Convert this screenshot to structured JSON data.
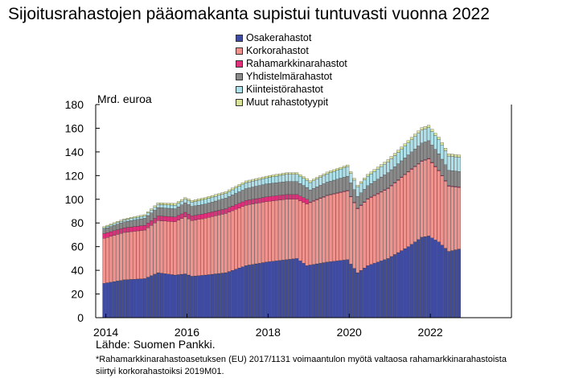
{
  "title": "Sijoitusrahastojen pääomakanta supistui tuntuvasti vuonna 2022",
  "unit_label": "Mrd. euroa",
  "source": "Lähde: Suomen Pankki.",
  "footnote_line1": "*Rahamarkkinarahastoasetuksen (EU) 2017/1131 voimaantulon myötä valtaosa rahamarkkinarahastoista",
  "footnote_line2": "siirtyi korkorahastoiksi 2019M01.",
  "legend": [
    {
      "name": "Osakerahastot",
      "color": "#3f4aa1"
    },
    {
      "name": "Korkorahastot",
      "color": "#f0938f"
    },
    {
      "name": "Rahamarkkinarahastot",
      "color": "#e0307c"
    },
    {
      "name": "Yhdistelmärahastot",
      "color": "#8a8a8a"
    },
    {
      "name": "Kiinteistörahastot",
      "color": "#aee0ea"
    },
    {
      "name": "Muut rahastotyypit",
      "color": "#d9e39a"
    }
  ],
  "chart_data": {
    "type": "bar",
    "stacked": true,
    "ylabel": "Mrd. euroa",
    "ylim": [
      0,
      180
    ],
    "yticks": [
      0,
      20,
      40,
      60,
      80,
      100,
      120,
      140,
      160,
      180
    ],
    "xlim": [
      "2013-10",
      "2024-01"
    ],
    "xticks": [
      "2014",
      "2016",
      "2018",
      "2020",
      "2022"
    ],
    "grid": false,
    "legend_position": "top",
    "x_start": "2013-12",
    "x_end": "2022-09",
    "series": [
      {
        "name": "Osakerahastot",
        "color": "#3f4aa1",
        "anchors": [
          [
            "2013-12",
            29
          ],
          [
            "2014-06",
            32
          ],
          [
            "2014-12",
            33
          ],
          [
            "2015-04",
            38
          ],
          [
            "2015-09",
            36
          ],
          [
            "2015-12",
            37
          ],
          [
            "2016-02",
            35
          ],
          [
            "2016-06",
            36
          ],
          [
            "2016-12",
            38
          ],
          [
            "2017-06",
            44
          ],
          [
            "2017-12",
            47
          ],
          [
            "2018-06",
            49
          ],
          [
            "2018-09",
            50
          ],
          [
            "2018-12",
            44
          ],
          [
            "2019-06",
            47
          ],
          [
            "2019-12",
            49
          ],
          [
            "2020-03",
            38
          ],
          [
            "2020-06",
            44
          ],
          [
            "2020-12",
            50
          ],
          [
            "2021-06",
            60
          ],
          [
            "2021-10",
            68
          ],
          [
            "2021-12",
            69
          ],
          [
            "2022-03",
            64
          ],
          [
            "2022-06",
            56
          ],
          [
            "2022-09",
            58
          ]
        ]
      },
      {
        "name": "Korkorahastot",
        "color": "#f0938f",
        "anchors": [
          [
            "2013-12",
            38
          ],
          [
            "2014-06",
            40
          ],
          [
            "2014-12",
            41
          ],
          [
            "2015-04",
            44
          ],
          [
            "2015-09",
            45
          ],
          [
            "2015-12",
            48
          ],
          [
            "2016-02",
            47
          ],
          [
            "2016-06",
            48
          ],
          [
            "2016-12",
            50
          ],
          [
            "2017-06",
            51
          ],
          [
            "2017-12",
            51
          ],
          [
            "2018-06",
            51
          ],
          [
            "2018-09",
            50
          ],
          [
            "2018-12",
            52
          ],
          [
            "2019-06",
            56
          ],
          [
            "2019-12",
            58
          ],
          [
            "2020-03",
            54
          ],
          [
            "2020-06",
            56
          ],
          [
            "2020-12",
            59
          ],
          [
            "2021-06",
            63
          ],
          [
            "2021-10",
            64
          ],
          [
            "2021-12",
            65
          ],
          [
            "2022-03",
            60
          ],
          [
            "2022-06",
            55
          ],
          [
            "2022-09",
            52
          ]
        ]
      },
      {
        "name": "Rahamarkkinarahastot",
        "color": "#e0307c",
        "anchors": [
          [
            "2013-12",
            4
          ],
          [
            "2014-06",
            4
          ],
          [
            "2014-12",
            4
          ],
          [
            "2015-04",
            4
          ],
          [
            "2015-09",
            4
          ],
          [
            "2015-12",
            4
          ],
          [
            "2016-02",
            4
          ],
          [
            "2016-06",
            4
          ],
          [
            "2016-12",
            4
          ],
          [
            "2017-06",
            4
          ],
          [
            "2017-12",
            4
          ],
          [
            "2018-06",
            4
          ],
          [
            "2018-09",
            4
          ],
          [
            "2018-12",
            4
          ],
          [
            "2019-01",
            0.6
          ],
          [
            "2019-06",
            0.5
          ],
          [
            "2019-12",
            0.5
          ],
          [
            "2020-03",
            0.5
          ],
          [
            "2020-06",
            0.5
          ],
          [
            "2020-12",
            0.5
          ],
          [
            "2021-06",
            0.5
          ],
          [
            "2021-10",
            0.5
          ],
          [
            "2021-12",
            0.5
          ],
          [
            "2022-03",
            0.5
          ],
          [
            "2022-06",
            0.5
          ],
          [
            "2022-09",
            0.5
          ]
        ]
      },
      {
        "name": "Yhdistelmärahastot",
        "color": "#8a8a8a",
        "anchors": [
          [
            "2013-12",
            4
          ],
          [
            "2014-06",
            5
          ],
          [
            "2014-12",
            6
          ],
          [
            "2015-04",
            7
          ],
          [
            "2015-09",
            7
          ],
          [
            "2015-12",
            8
          ],
          [
            "2016-02",
            8
          ],
          [
            "2016-06",
            8
          ],
          [
            "2016-12",
            9
          ],
          [
            "2017-06",
            10
          ],
          [
            "2017-12",
            11
          ],
          [
            "2018-06",
            11
          ],
          [
            "2018-09",
            11
          ],
          [
            "2018-12",
            10
          ],
          [
            "2019-06",
            11
          ],
          [
            "2019-12",
            12
          ],
          [
            "2020-03",
            10
          ],
          [
            "2020-06",
            11
          ],
          [
            "2020-12",
            13
          ],
          [
            "2021-06",
            14
          ],
          [
            "2021-10",
            15
          ],
          [
            "2021-12",
            15
          ],
          [
            "2022-03",
            14
          ],
          [
            "2022-06",
            13
          ],
          [
            "2022-09",
            13
          ]
        ]
      },
      {
        "name": "Kiinteistörahastot",
        "color": "#aee0ea",
        "anchors": [
          [
            "2013-12",
            1
          ],
          [
            "2014-06",
            1.5
          ],
          [
            "2014-12",
            2
          ],
          [
            "2015-04",
            2.5
          ],
          [
            "2015-09",
            3
          ],
          [
            "2015-12",
            3
          ],
          [
            "2016-02",
            3.5
          ],
          [
            "2016-06",
            4
          ],
          [
            "2016-12",
            4
          ],
          [
            "2017-06",
            5
          ],
          [
            "2017-12",
            5
          ],
          [
            "2018-06",
            6
          ],
          [
            "2018-09",
            6
          ],
          [
            "2018-12",
            6
          ],
          [
            "2019-06",
            7
          ],
          [
            "2019-12",
            8
          ],
          [
            "2020-03",
            8
          ],
          [
            "2020-06",
            8
          ],
          [
            "2020-12",
            9
          ],
          [
            "2021-06",
            10
          ],
          [
            "2021-10",
            11
          ],
          [
            "2021-12",
            11
          ],
          [
            "2022-03",
            12
          ],
          [
            "2022-06",
            12
          ],
          [
            "2022-09",
            12
          ]
        ]
      },
      {
        "name": "Muut rahastotyypit",
        "color": "#d9e39a",
        "anchors": [
          [
            "2013-12",
            1
          ],
          [
            "2014-06",
            1
          ],
          [
            "2014-12",
            1
          ],
          [
            "2015-04",
            1.5
          ],
          [
            "2015-09",
            1.5
          ],
          [
            "2015-12",
            1.5
          ],
          [
            "2016-02",
            1.5
          ],
          [
            "2016-06",
            1.5
          ],
          [
            "2016-12",
            1.5
          ],
          [
            "2017-06",
            1.5
          ],
          [
            "2017-12",
            1.5
          ],
          [
            "2018-06",
            1.5
          ],
          [
            "2018-09",
            1.5
          ],
          [
            "2018-12",
            1.5
          ],
          [
            "2019-06",
            1.5
          ],
          [
            "2019-12",
            1.5
          ],
          [
            "2020-03",
            1.5
          ],
          [
            "2020-06",
            1.5
          ],
          [
            "2020-12",
            2
          ],
          [
            "2021-06",
            2
          ],
          [
            "2021-10",
            2
          ],
          [
            "2021-12",
            2
          ],
          [
            "2022-03",
            2
          ],
          [
            "2022-06",
            2
          ],
          [
            "2022-09",
            2
          ]
        ]
      }
    ]
  }
}
